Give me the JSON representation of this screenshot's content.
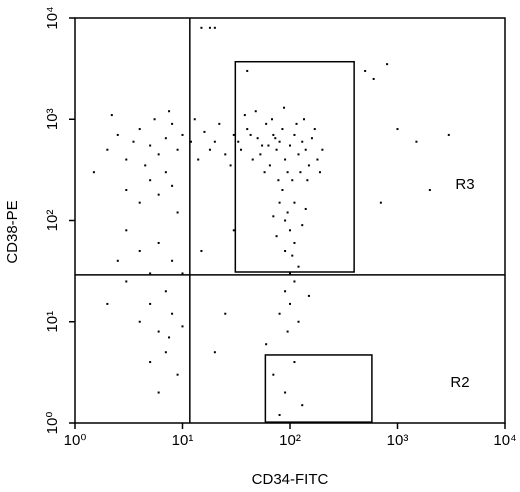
{
  "chart_data": {
    "type": "scatter",
    "x_label": "CD34-FITC",
    "y_label": "CD38-PE",
    "xscale": "log",
    "yscale": "log",
    "xlim": [
      1,
      10000
    ],
    "ylim": [
      1,
      10000
    ],
    "xticks": [
      {
        "value": 1,
        "label": "10⁰"
      },
      {
        "value": 10,
        "label": "10¹"
      },
      {
        "value": 100,
        "label": "10²"
      },
      {
        "value": 1000,
        "label": "10³"
      },
      {
        "value": 10000,
        "label": "10⁴"
      }
    ],
    "yticks": [
      {
        "value": 1,
        "label": "10⁰"
      },
      {
        "value": 10,
        "label": "10¹"
      },
      {
        "value": 100,
        "label": "10²"
      },
      {
        "value": 1000,
        "label": "10³"
      },
      {
        "value": 10000,
        "label": "10⁴"
      }
    ],
    "color": "#000000",
    "quadrant": {
      "x": 11.7,
      "y": 29
    },
    "gates": [
      {
        "x": [
          31,
          395
        ],
        "y": [
          31,
          3700
        ]
      },
      {
        "x": [
          59,
          578
        ],
        "y": [
          1.02,
          4.7
        ]
      }
    ],
    "region_labels": [
      "R3",
      "R2"
    ],
    "x": [
      20,
      25,
      30,
      35,
      40,
      45,
      50,
      55,
      60,
      65,
      70,
      75,
      80,
      85,
      90,
      100,
      110,
      120,
      130,
      140,
      150,
      160,
      180,
      200,
      22,
      28,
      38,
      48,
      58,
      68,
      78,
      88,
      95,
      105,
      115,
      125,
      135,
      145,
      170,
      190,
      18,
      16,
      14,
      13,
      12,
      33,
      43,
      53,
      63,
      73,
      1.5,
      2,
      2.5,
      3,
      3.5,
      4,
      4.5,
      5,
      6,
      7,
      8,
      9,
      10,
      3,
      4,
      5,
      6,
      7,
      8,
      9,
      2.2,
      5.5,
      7.5,
      80,
      90,
      100,
      110,
      95,
      85,
      105,
      120,
      75,
      130,
      100,
      90,
      110,
      140,
      70,
      90,
      100,
      120,
      80,
      95,
      110,
      150,
      60,
      3,
      4,
      5,
      6,
      7,
      8,
      5,
      6,
      7,
      4,
      3,
      2.5,
      8,
      9,
      6,
      5,
      7.5,
      10,
      10,
      2,
      15,
      20,
      25,
      30,
      70,
      90,
      110,
      130,
      80,
      500,
      800,
      600,
      1000,
      1500,
      3000,
      2000,
      700,
      15,
      18,
      20,
      40
    ],
    "y": [
      600,
      450,
      700,
      500,
      800,
      400,
      650,
      550,
      900,
      350,
      700,
      500,
      600,
      800,
      400,
      550,
      700,
      450,
      600,
      500,
      350,
      650,
      400,
      500,
      900,
      350,
      1100,
      1200,
      300,
      1000,
      250,
      1300,
      300,
      250,
      900,
      300,
      1000,
      250,
      800,
      300,
      500,
      750,
      400,
      1000,
      600,
      600,
      700,
      450,
      550,
      650,
      300,
      500,
      700,
      400,
      600,
      800,
      350,
      550,
      450,
      650,
      900,
      500,
      700,
      200,
      150,
      250,
      180,
      300,
      220,
      120,
      1100,
      1000,
      1200,
      150,
      100,
      80,
      60,
      120,
      200,
      45,
      35,
      70,
      90,
      30,
      50,
      150,
      130,
      110,
      20,
      15,
      10,
      12,
      8,
      25,
      18,
      6,
      80,
      50,
      30,
      60,
      20,
      40,
      15,
      8,
      5,
      10,
      25,
      40,
      12,
      3,
      2,
      4,
      7,
      30,
      9,
      15,
      50,
      5,
      12,
      80,
      3,
      2,
      4,
      1.5,
      1.2,
      3000,
      3500,
      2500,
      800,
      600,
      700,
      200,
      150,
      8000,
      8000,
      8000,
      3000
    ]
  }
}
